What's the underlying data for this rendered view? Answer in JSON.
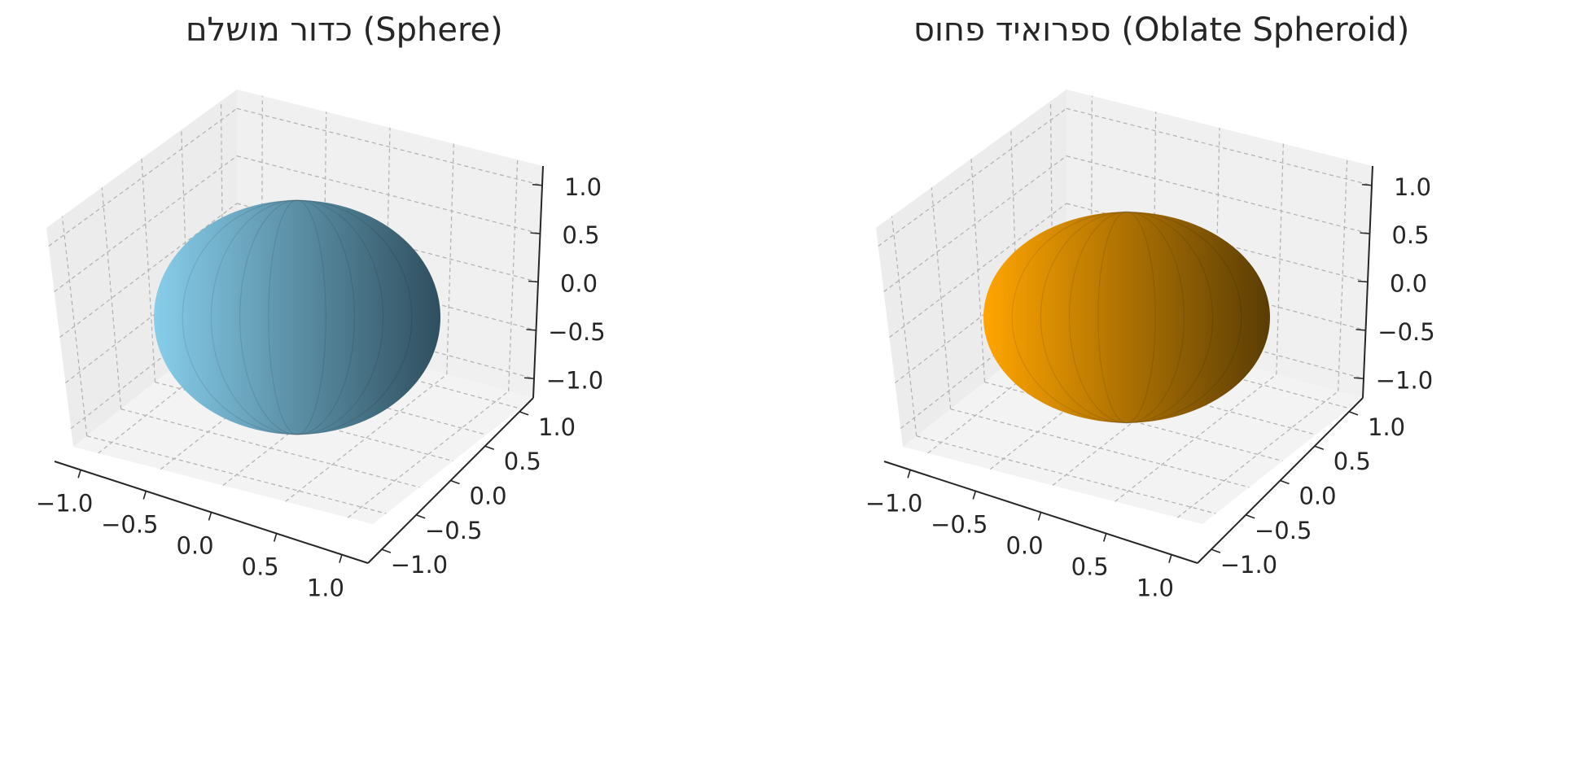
{
  "chart_data": [
    {
      "type": "surface3d",
      "title": "כדור מושלם (Sphere)",
      "surface": "sphere",
      "color": "#87ceeb",
      "shade": "#2f4f5f",
      "parameters": {
        "a": 1.0,
        "b": 1.0,
        "c": 1.0
      },
      "xlim": [
        -1.2,
        1.2
      ],
      "ylim": [
        -1.2,
        1.2
      ],
      "zlim": [
        -1.2,
        1.2
      ],
      "x_ticks": [
        "−1.0",
        "−0.5",
        "0.0",
        "0.5",
        "1.0"
      ],
      "y_ticks": [
        "−1.0",
        "−0.5",
        "0.0",
        "0.5",
        "1.0"
      ],
      "z_ticks": [
        "−1.0",
        "−0.5",
        "0.0",
        "0.5",
        "1.0"
      ],
      "grid": true,
      "grid_style": "dashed"
    },
    {
      "type": "surface3d",
      "title": "ספרואיד פחוס (Oblate Spheroid)",
      "surface": "oblate spheroid",
      "color": "#ffa500",
      "shade": "#5a3d05",
      "parameters": {
        "a": 1.0,
        "b": 1.0,
        "c": 0.8
      },
      "xlim": [
        -1.2,
        1.2
      ],
      "ylim": [
        -1.2,
        1.2
      ],
      "zlim": [
        -1.2,
        1.2
      ],
      "x_ticks": [
        "−1.0",
        "−0.5",
        "0.0",
        "0.5",
        "1.0"
      ],
      "y_ticks": [
        "−1.0",
        "−0.5",
        "0.0",
        "0.5",
        "1.0"
      ],
      "z_ticks": [
        "−1.0",
        "−0.5",
        "0.0",
        "0.5",
        "1.0"
      ],
      "grid": true,
      "grid_style": "dashed"
    }
  ]
}
